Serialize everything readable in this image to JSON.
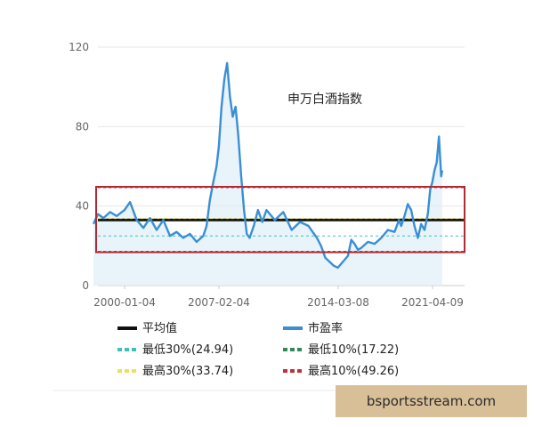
{
  "chart_data": {
    "type": "line",
    "title": "申万白酒指数",
    "xlabel": "",
    "ylabel": "",
    "x_ticks": [
      "2000-01-04",
      "2007-02-04",
      "2014-03-08",
      "2021-04-09"
    ],
    "y_ticks": [
      "0",
      "40",
      "80",
      "120"
    ],
    "ylim": [
      0,
      120
    ],
    "grid": "horizontal",
    "legend_placement": "bottom",
    "series": [
      {
        "name": "市盈率",
        "color": "#3a8fd4",
        "x": [
          "1997-09-01",
          "1998-01-01",
          "1998-06-01",
          "1998-12-01",
          "1999-06-01",
          "2000-01-01",
          "2000-06-01",
          "2000-12-01",
          "2001-06-01",
          "2001-12-01",
          "2002-06-01",
          "2002-12-01",
          "2003-06-01",
          "2003-12-01",
          "2004-06-01",
          "2004-12-01",
          "2005-06-01",
          "2005-12-01",
          "2006-03-01",
          "2006-06-01",
          "2006-09-01",
          "2006-12-01",
          "2007-02-01",
          "2007-04-01",
          "2007-06-01",
          "2007-08-01",
          "2007-10-01",
          "2007-12-01",
          "2008-02-01",
          "2008-04-01",
          "2008-06-01",
          "2008-08-01",
          "2008-10-01",
          "2008-12-01",
          "2009-03-01",
          "2009-06-01",
          "2009-09-01",
          "2009-12-01",
          "2010-06-01",
          "2010-12-01",
          "2011-06-01",
          "2011-12-01",
          "2012-06-01",
          "2012-12-01",
          "2013-03-01",
          "2013-06-01",
          "2013-09-01",
          "2013-12-01",
          "2014-03-01",
          "2014-06-01",
          "2014-09-01",
          "2014-12-01",
          "2015-03-01",
          "2015-06-01",
          "2015-09-01",
          "2015-12-01",
          "2016-06-01",
          "2016-12-01",
          "2017-06-01",
          "2017-12-01",
          "2018-06-01",
          "2018-10-01",
          "2018-12-01",
          "2019-03-01",
          "2019-06-01",
          "2019-09-01",
          "2019-12-01",
          "2020-03-01",
          "2020-06-01",
          "2020-09-01",
          "2020-12-01",
          "2021-02-01",
          "2021-04-01",
          "2021-06-01",
          "2021-08-01",
          "2021-10-01",
          "2021-12-01",
          "2022-01-01"
        ],
        "values": [
          31,
          36,
          34,
          37,
          35,
          38,
          42,
          33,
          29,
          34,
          28,
          33,
          25,
          27,
          24,
          26,
          22,
          25,
          30,
          43,
          52,
          60,
          70,
          90,
          104,
          112,
          95,
          85,
          90,
          75,
          55,
          38,
          26,
          24,
          30,
          38,
          32,
          38,
          33,
          37,
          28,
          32,
          30,
          24,
          20,
          14,
          12,
          10,
          9,
          11,
          13,
          15,
          23,
          21,
          18,
          19,
          22,
          21,
          24,
          28,
          27,
          33,
          30,
          35,
          41,
          38,
          30,
          24,
          31,
          28,
          36,
          48,
          52,
          58,
          62,
          75,
          55,
          58
        ]
      }
    ],
    "reference_lines": [
      {
        "name": "平均值",
        "value": 33.0,
        "color": "#111111",
        "style": "solid"
      },
      {
        "name": "最低30%(24.94)",
        "value": 24.94,
        "color": "#3ec0c0",
        "style": "dashed"
      },
      {
        "name": "最低10%(17.22)",
        "value": 17.22,
        "color": "#2e8b57",
        "style": "dashed"
      },
      {
        "name": "最高30%(33.74)",
        "value": 33.74,
        "color": "#e8e060",
        "style": "dashed"
      },
      {
        "name": "最高10%(49.26)",
        "value": 49.26,
        "color": "#c0303a",
        "style": "dashed"
      }
    ],
    "highlight_box": {
      "y_low": 17.22,
      "y_high": 49.26,
      "color": "#b02a33"
    },
    "legend": [
      {
        "label": "平均值",
        "color": "#111111",
        "style": "solid"
      },
      {
        "label": "市盈率",
        "color": "#3a8fd4",
        "style": "solid"
      },
      {
        "label": "最低30%(24.94)",
        "color": "#3ec0c0",
        "style": "dashed"
      },
      {
        "label": "最低10%(17.22)",
        "color": "#2e8b57",
        "style": "dashed"
      },
      {
        "label": "最高30%(33.74)",
        "color": "#e8e060",
        "style": "dashed"
      },
      {
        "label": "最高10%(49.26)",
        "color": "#c0303a",
        "style": "dashed"
      }
    ]
  },
  "watermark": "bsportsstream.com"
}
